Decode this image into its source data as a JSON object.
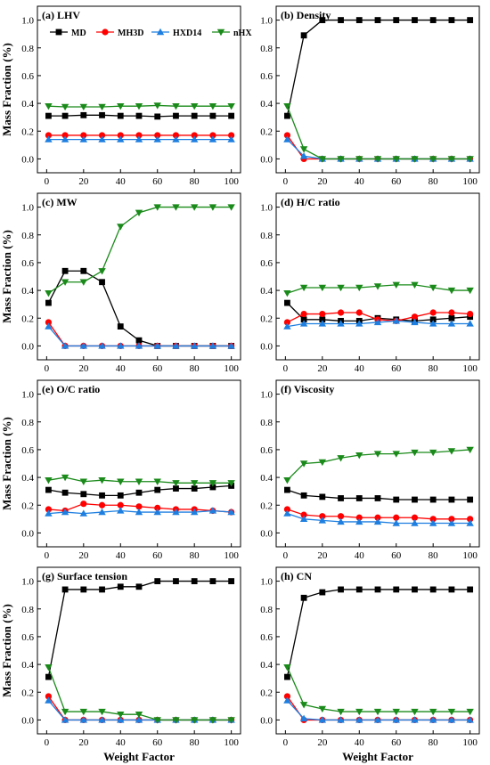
{
  "figure": {
    "ylabel": "Mass Fraction (%)",
    "xlabel": "Weight Factor",
    "legend": {
      "placement": "top, inside panel (a)",
      "entries": [
        {
          "name": "MD",
          "color": "#000000",
          "marker": "square"
        },
        {
          "name": "MH3D",
          "color": "#ff0000",
          "marker": "circle"
        },
        {
          "name": "HXD14",
          "color": "#1e7fe0",
          "marker": "triangle-up"
        },
        {
          "name": "nHX",
          "color": "#1a8a1a",
          "marker": "triangle-down"
        }
      ]
    }
  },
  "chart_data": [
    {
      "type": "line",
      "title": "(a) LHV",
      "xlabel": "",
      "ylabel": "Mass Fraction (%)",
      "xlim": [
        -5,
        105
      ],
      "ylim": [
        -0.1,
        1.1
      ],
      "xticks": [
        0,
        20,
        40,
        60,
        80,
        100
      ],
      "yticks": [
        0.0,
        0.2,
        0.4,
        0.6,
        0.8,
        1.0
      ],
      "x": [
        1,
        10,
        20,
        30,
        40,
        50,
        60,
        70,
        80,
        90,
        100
      ],
      "series": [
        {
          "name": "MD",
          "values": [
            0.31,
            0.31,
            0.315,
            0.315,
            0.31,
            0.31,
            0.305,
            0.31,
            0.31,
            0.31,
            0.31
          ]
        },
        {
          "name": "MH3D",
          "values": [
            0.17,
            0.17,
            0.17,
            0.17,
            0.17,
            0.17,
            0.17,
            0.17,
            0.17,
            0.17,
            0.17
          ]
        },
        {
          "name": "HXD14",
          "values": [
            0.14,
            0.14,
            0.14,
            0.14,
            0.14,
            0.14,
            0.14,
            0.14,
            0.14,
            0.14,
            0.14
          ]
        },
        {
          "name": "nHX",
          "values": [
            0.38,
            0.375,
            0.375,
            0.375,
            0.38,
            0.38,
            0.385,
            0.38,
            0.38,
            0.38,
            0.38
          ]
        }
      ]
    },
    {
      "type": "line",
      "title": "(b)  Density",
      "xlabel": "",
      "ylabel": "",
      "xlim": [
        -5,
        105
      ],
      "ylim": [
        -0.1,
        1.1
      ],
      "xticks": [
        0,
        20,
        40,
        60,
        80,
        100
      ],
      "yticks": [
        0.0,
        0.2,
        0.4,
        0.6,
        0.8,
        1.0
      ],
      "x": [
        1,
        10,
        20,
        30,
        40,
        50,
        60,
        70,
        80,
        90,
        100
      ],
      "series": [
        {
          "name": "MD",
          "values": [
            0.31,
            0.89,
            1.0,
            1.0,
            1.0,
            1.0,
            1.0,
            1.0,
            1.0,
            1.0,
            1.0
          ]
        },
        {
          "name": "MH3D",
          "values": [
            0.17,
            0.0,
            0.0,
            0.0,
            0.0,
            0.0,
            0.0,
            0.0,
            0.0,
            0.0,
            0.0
          ]
        },
        {
          "name": "HXD14",
          "values": [
            0.14,
            0.02,
            0.0,
            0.0,
            0.0,
            0.0,
            0.0,
            0.0,
            0.0,
            0.0,
            0.0
          ]
        },
        {
          "name": "nHX",
          "values": [
            0.38,
            0.07,
            0.0,
            0.0,
            0.0,
            0.0,
            0.0,
            0.0,
            0.0,
            0.0,
            0.0
          ]
        }
      ]
    },
    {
      "type": "line",
      "title": "(c) MW",
      "xlabel": "",
      "ylabel": "Mass Fraction (%)",
      "xlim": [
        -5,
        105
      ],
      "ylim": [
        -0.1,
        1.1
      ],
      "xticks": [
        0,
        20,
        40,
        60,
        80,
        100
      ],
      "yticks": [
        0.0,
        0.2,
        0.4,
        0.6,
        0.8,
        1.0
      ],
      "x": [
        1,
        10,
        20,
        30,
        40,
        50,
        60,
        70,
        80,
        90,
        100
      ],
      "series": [
        {
          "name": "MD",
          "values": [
            0.31,
            0.54,
            0.54,
            0.46,
            0.14,
            0.04,
            0.0,
            0.0,
            0.0,
            0.0,
            0.0
          ]
        },
        {
          "name": "MH3D",
          "values": [
            0.17,
            0.0,
            0.0,
            0.0,
            0.0,
            0.0,
            0.0,
            0.0,
            0.0,
            0.0,
            0.0
          ]
        },
        {
          "name": "HXD14",
          "values": [
            0.14,
            0.0,
            0.0,
            0.0,
            0.0,
            0.0,
            0.0,
            0.0,
            0.0,
            0.0,
            0.0
          ]
        },
        {
          "name": "nHX",
          "values": [
            0.38,
            0.46,
            0.46,
            0.54,
            0.86,
            0.96,
            1.0,
            1.0,
            1.0,
            1.0,
            1.0
          ]
        }
      ]
    },
    {
      "type": "line",
      "title": "(d) H/C ratio",
      "xlabel": "",
      "ylabel": "",
      "xlim": [
        -5,
        105
      ],
      "ylim": [
        -0.1,
        1.1
      ],
      "xticks": [
        0,
        20,
        40,
        60,
        80,
        100
      ],
      "yticks": [
        0.0,
        0.2,
        0.4,
        0.6,
        0.8,
        1.0
      ],
      "x": [
        1,
        10,
        20,
        30,
        40,
        50,
        60,
        70,
        80,
        90,
        100
      ],
      "series": [
        {
          "name": "MD",
          "values": [
            0.31,
            0.19,
            0.19,
            0.18,
            0.18,
            0.2,
            0.19,
            0.18,
            0.19,
            0.2,
            0.21
          ]
        },
        {
          "name": "MH3D",
          "values": [
            0.17,
            0.23,
            0.23,
            0.24,
            0.24,
            0.19,
            0.18,
            0.21,
            0.24,
            0.24,
            0.23
          ]
        },
        {
          "name": "HXD14",
          "values": [
            0.14,
            0.16,
            0.16,
            0.16,
            0.16,
            0.17,
            0.18,
            0.17,
            0.16,
            0.16,
            0.16
          ]
        },
        {
          "name": "nHX",
          "values": [
            0.38,
            0.42,
            0.42,
            0.42,
            0.42,
            0.43,
            0.44,
            0.44,
            0.42,
            0.4,
            0.4
          ]
        }
      ]
    },
    {
      "type": "line",
      "title": "(e) O/C ratio",
      "xlabel": "",
      "ylabel": "Mass Fraction (%)",
      "xlim": [
        -5,
        105
      ],
      "ylim": [
        -0.1,
        1.1
      ],
      "xticks": [
        0,
        20,
        40,
        60,
        80,
        100
      ],
      "yticks": [
        0.0,
        0.2,
        0.4,
        0.6,
        0.8,
        1.0
      ],
      "x": [
        1,
        10,
        20,
        30,
        40,
        50,
        60,
        70,
        80,
        90,
        100
      ],
      "series": [
        {
          "name": "MD",
          "values": [
            0.31,
            0.29,
            0.28,
            0.27,
            0.27,
            0.29,
            0.31,
            0.32,
            0.32,
            0.33,
            0.34
          ]
        },
        {
          "name": "MH3D",
          "values": [
            0.17,
            0.16,
            0.21,
            0.2,
            0.2,
            0.19,
            0.18,
            0.17,
            0.17,
            0.16,
            0.15
          ]
        },
        {
          "name": "HXD14",
          "values": [
            0.14,
            0.15,
            0.14,
            0.15,
            0.16,
            0.15,
            0.15,
            0.15,
            0.15,
            0.16,
            0.15
          ]
        },
        {
          "name": "nHX",
          "values": [
            0.38,
            0.4,
            0.37,
            0.38,
            0.37,
            0.37,
            0.37,
            0.36,
            0.36,
            0.36,
            0.36
          ]
        }
      ]
    },
    {
      "type": "line",
      "title": "(f)  Viscosity",
      "xlabel": "",
      "ylabel": "",
      "xlim": [
        -5,
        105
      ],
      "ylim": [
        -0.1,
        1.1
      ],
      "xticks": [
        0,
        20,
        40,
        60,
        80,
        100
      ],
      "yticks": [
        0.0,
        0.2,
        0.4,
        0.6,
        0.8,
        1.0
      ],
      "x": [
        1,
        10,
        20,
        30,
        40,
        50,
        60,
        70,
        80,
        90,
        100
      ],
      "series": [
        {
          "name": "MD",
          "values": [
            0.31,
            0.27,
            0.26,
            0.25,
            0.25,
            0.25,
            0.24,
            0.24,
            0.24,
            0.24,
            0.24
          ]
        },
        {
          "name": "MH3D",
          "values": [
            0.17,
            0.13,
            0.12,
            0.12,
            0.11,
            0.11,
            0.11,
            0.11,
            0.1,
            0.1,
            0.1
          ]
        },
        {
          "name": "HXD14",
          "values": [
            0.14,
            0.1,
            0.09,
            0.08,
            0.08,
            0.08,
            0.07,
            0.07,
            0.07,
            0.07,
            0.07
          ]
        },
        {
          "name": "nHX",
          "values": [
            0.38,
            0.5,
            0.51,
            0.54,
            0.56,
            0.57,
            0.57,
            0.58,
            0.58,
            0.59,
            0.6
          ]
        }
      ]
    },
    {
      "type": "line",
      "title": "(g) Surface tension",
      "xlabel": "Weight Factor",
      "ylabel": "Mass Fraction (%)",
      "xlim": [
        -5,
        105
      ],
      "ylim": [
        -0.1,
        1.1
      ],
      "xticks": [
        0,
        20,
        40,
        60,
        80,
        100
      ],
      "yticks": [
        0.0,
        0.2,
        0.4,
        0.6,
        0.8,
        1.0
      ],
      "x": [
        1,
        10,
        20,
        30,
        40,
        50,
        60,
        70,
        80,
        90,
        100
      ],
      "series": [
        {
          "name": "MD",
          "values": [
            0.31,
            0.94,
            0.94,
            0.94,
            0.96,
            0.96,
            1.0,
            1.0,
            1.0,
            1.0,
            1.0
          ]
        },
        {
          "name": "MH3D",
          "values": [
            0.17,
            0.0,
            0.0,
            0.0,
            0.0,
            0.0,
            0.0,
            0.0,
            0.0,
            0.0,
            0.0
          ]
        },
        {
          "name": "HXD14",
          "values": [
            0.14,
            0.0,
            0.0,
            0.0,
            0.0,
            0.0,
            0.0,
            0.0,
            0.0,
            0.0,
            0.0
          ]
        },
        {
          "name": "nHX",
          "values": [
            0.38,
            0.06,
            0.06,
            0.06,
            0.04,
            0.04,
            0.0,
            0.0,
            0.0,
            0.0,
            0.0
          ]
        }
      ]
    },
    {
      "type": "line",
      "title": "(h) CN",
      "xlabel": "Weight Factor",
      "ylabel": "",
      "xlim": [
        -5,
        105
      ],
      "ylim": [
        -0.1,
        1.1
      ],
      "xticks": [
        0,
        20,
        40,
        60,
        80,
        100
      ],
      "yticks": [
        0.0,
        0.2,
        0.4,
        0.6,
        0.8,
        1.0
      ],
      "x": [
        1,
        10,
        20,
        30,
        40,
        50,
        60,
        70,
        80,
        90,
        100
      ],
      "series": [
        {
          "name": "MD",
          "values": [
            0.31,
            0.88,
            0.92,
            0.94,
            0.94,
            0.94,
            0.94,
            0.94,
            0.94,
            0.94,
            0.94
          ]
        },
        {
          "name": "MH3D",
          "values": [
            0.17,
            0.0,
            0.0,
            0.0,
            0.0,
            0.0,
            0.0,
            0.0,
            0.0,
            0.0,
            0.0
          ]
        },
        {
          "name": "HXD14",
          "values": [
            0.14,
            0.01,
            0.0,
            0.0,
            0.0,
            0.0,
            0.0,
            0.0,
            0.0,
            0.0,
            0.0
          ]
        },
        {
          "name": "nHX",
          "values": [
            0.38,
            0.11,
            0.08,
            0.06,
            0.06,
            0.06,
            0.06,
            0.06,
            0.06,
            0.06,
            0.06
          ]
        }
      ]
    }
  ]
}
